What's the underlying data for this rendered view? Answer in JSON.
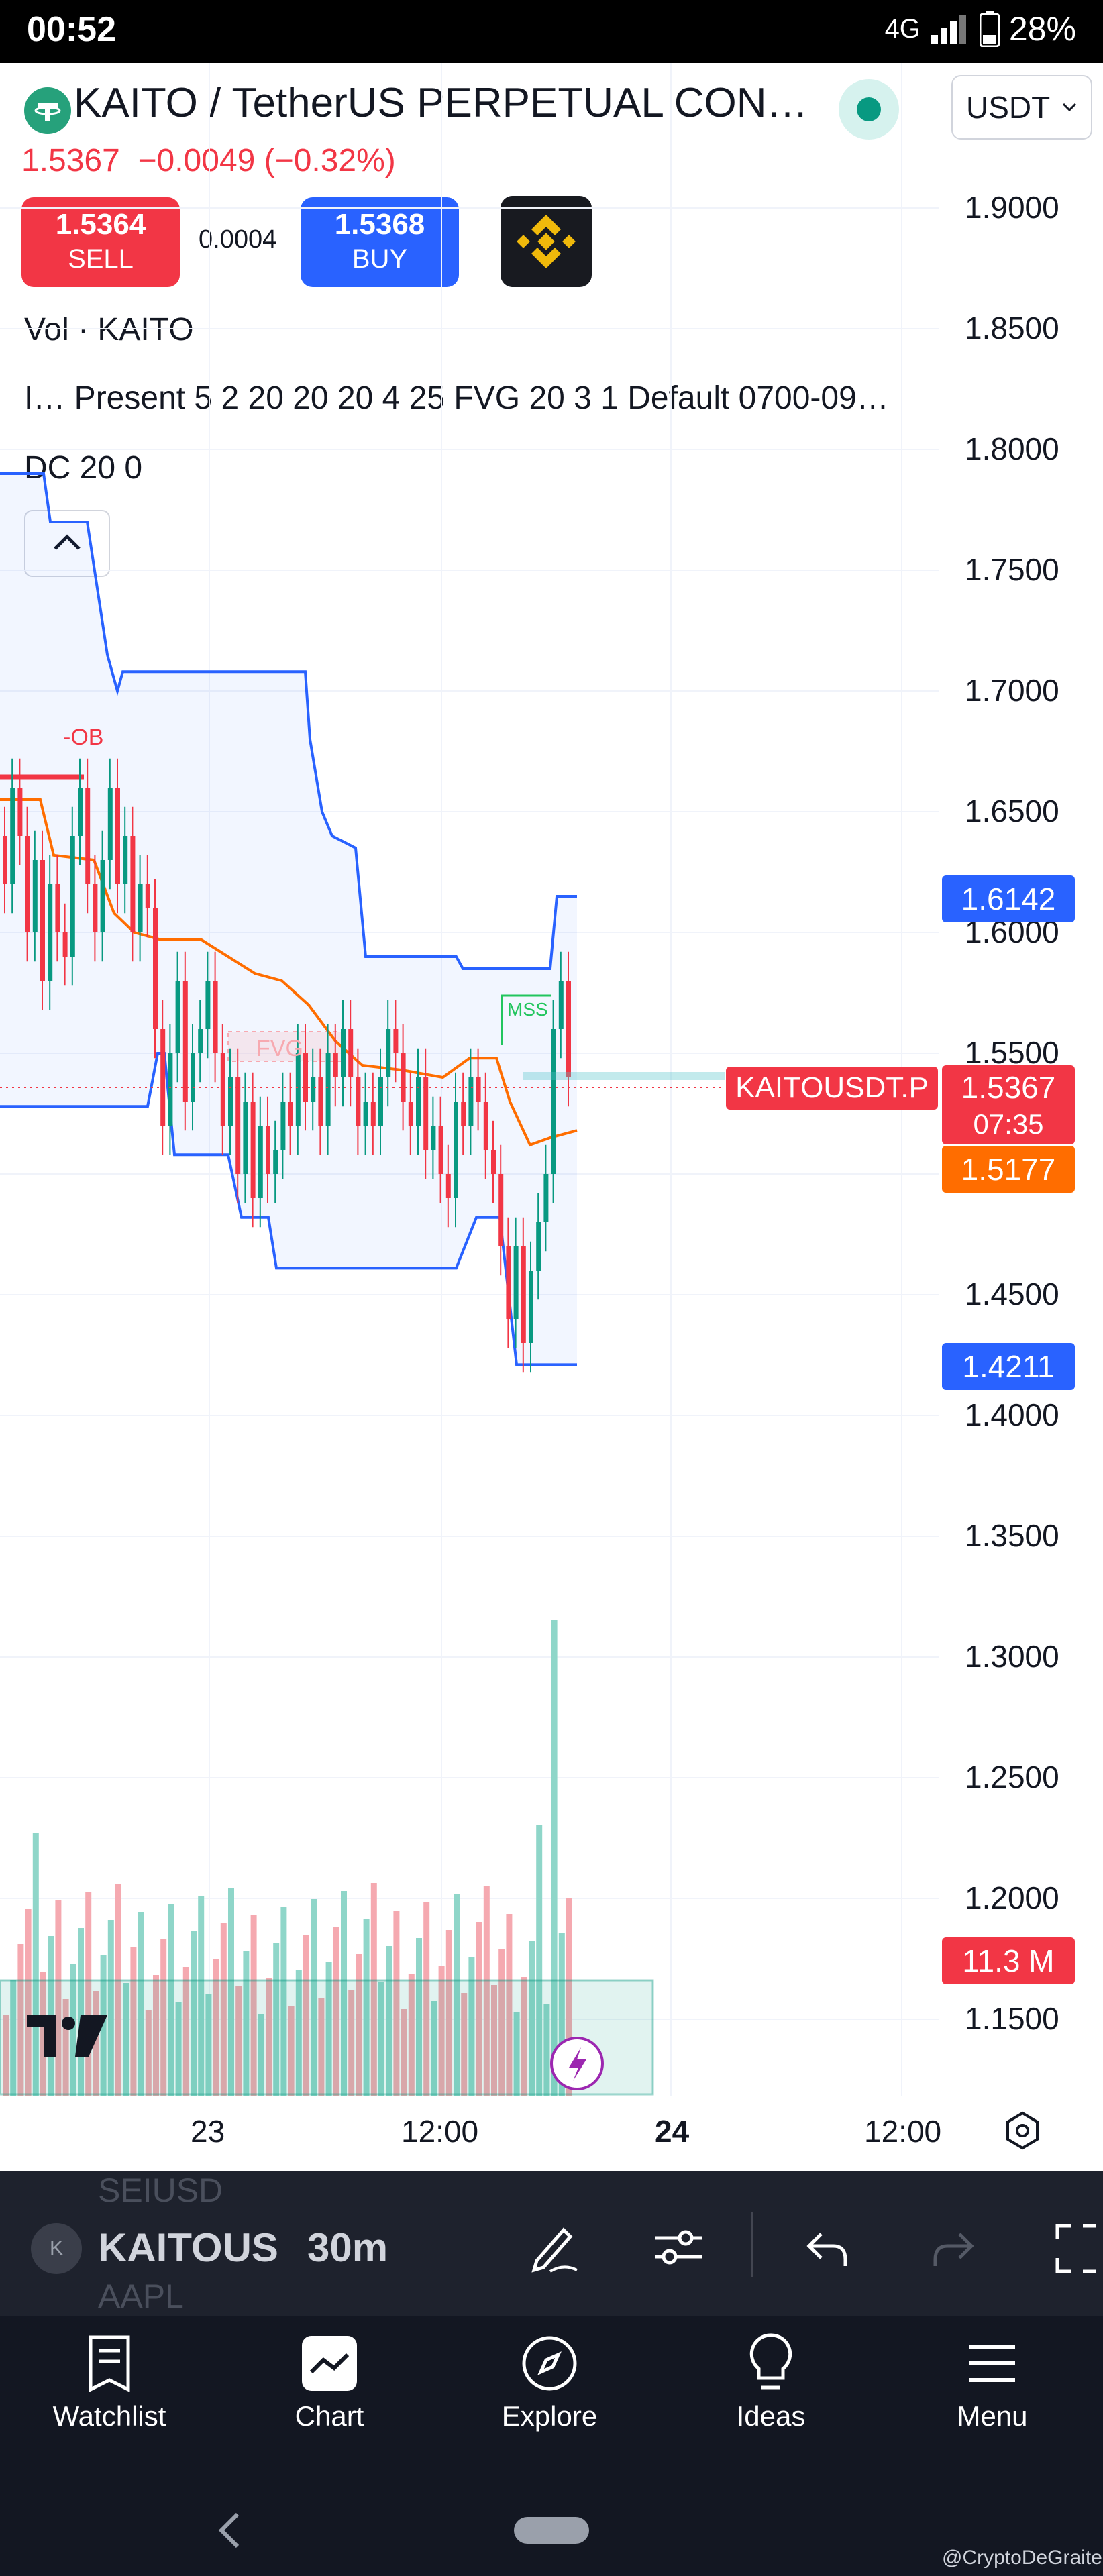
{
  "status_bar": {
    "time": "00:52",
    "network": "4G",
    "battery": "28%"
  },
  "header": {
    "title": "KAITO / TetherUS PERPETUAL CON…",
    "last_price": "1.5367",
    "change": "−0.0049",
    "change_pct": "(−0.32%)",
    "currency": "USDT"
  },
  "trade": {
    "sell_price": "1.5364",
    "sell_label": "SELL",
    "spread": "0.0004",
    "buy_price": "1.5368",
    "buy_label": "BUY"
  },
  "indicators": {
    "vol": "Vol · KAITO",
    "ict": "I…  Present 5 2 20 20 20 4 25 FVG 20 3 1 Default 0700-09…",
    "dc": "DC 20 0"
  },
  "chart_data": {
    "type": "candlestick",
    "symbol": "KAITOUSDT.P",
    "interval": "30m",
    "y_axis_ticks": [
      "1.9000",
      "1.8500",
      "1.8000",
      "1.7500",
      "1.7000",
      "1.6500",
      "1.6000",
      "1.5500",
      "1.5000",
      "1.4500",
      "1.4000",
      "1.3500",
      "1.3000",
      "1.2500",
      "1.2000",
      "1.1500"
    ],
    "ylim": [
      1.13,
      1.95
    ],
    "x_axis_ticks": [
      "23",
      "12:00",
      "24",
      "12:00"
    ],
    "annotations": [
      "-OB",
      "FVG",
      "MSS"
    ],
    "price_tags": {
      "dc_upper": "1.6142",
      "current": "1.5367",
      "countdown": "07:35",
      "ma": "1.5177",
      "dc_lower": "1.4211",
      "volume": "11.3 M"
    }
  },
  "toolbar": {
    "symbol": "KAITOUS",
    "interval": "30m",
    "ghost_top": "SEIUSD",
    "ghost_bottom": "AAPL"
  },
  "nav": {
    "watchlist": "Watchlist",
    "chart": "Chart",
    "explore": "Explore",
    "ideas": "Ideas",
    "menu": "Menu"
  },
  "watermark": "@CryptoDeGraite",
  "colors": {
    "up": "#089981",
    "down": "#f23645",
    "dc": "#2962ff",
    "ma": "#ff6d00"
  }
}
